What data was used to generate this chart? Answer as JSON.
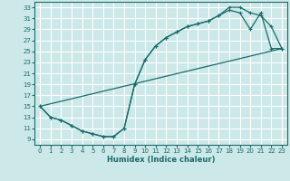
{
  "xlabel": "Humidex (Indice chaleur)",
  "bg_color": "#cce8e8",
  "grid_color": "#ffffff",
  "line_color": "#1a6b6b",
  "xlim": [
    -0.5,
    23.5
  ],
  "ylim": [
    8.0,
    34.0
  ],
  "xticks": [
    0,
    1,
    2,
    3,
    4,
    5,
    6,
    7,
    8,
    9,
    10,
    11,
    12,
    13,
    14,
    15,
    16,
    17,
    18,
    19,
    20,
    21,
    22,
    23
  ],
  "yticks": [
    9,
    11,
    13,
    15,
    17,
    19,
    21,
    23,
    25,
    27,
    29,
    31,
    33
  ],
  "curve1_x": [
    0,
    1,
    2,
    3,
    4,
    5,
    6,
    7,
    8,
    9,
    10,
    11,
    12,
    13,
    14,
    15,
    16,
    17,
    18,
    19,
    20,
    21,
    22,
    23
  ],
  "curve1_y": [
    15,
    13,
    12.5,
    11.5,
    10.5,
    10.0,
    9.5,
    9.5,
    11.0,
    19.0,
    23.5,
    26.0,
    27.5,
    28.5,
    29.5,
    30.0,
    30.5,
    31.5,
    33.0,
    33.0,
    32.0,
    31.5,
    29.5,
    25.5
  ],
  "curve2_x": [
    0,
    1,
    2,
    3,
    4,
    5,
    6,
    7,
    8,
    9,
    10,
    11,
    12,
    13,
    14,
    15,
    16,
    17,
    18,
    19,
    20,
    21,
    22,
    23
  ],
  "curve2_y": [
    15,
    13,
    12.5,
    11.5,
    10.5,
    10.0,
    9.5,
    9.5,
    11.0,
    19.0,
    23.5,
    26.0,
    27.5,
    28.5,
    29.5,
    30.0,
    30.5,
    31.5,
    32.5,
    32.0,
    29.0,
    32.0,
    25.5,
    25.5
  ],
  "curve3_x": [
    0,
    23
  ],
  "curve3_y": [
    15,
    25.5
  ]
}
